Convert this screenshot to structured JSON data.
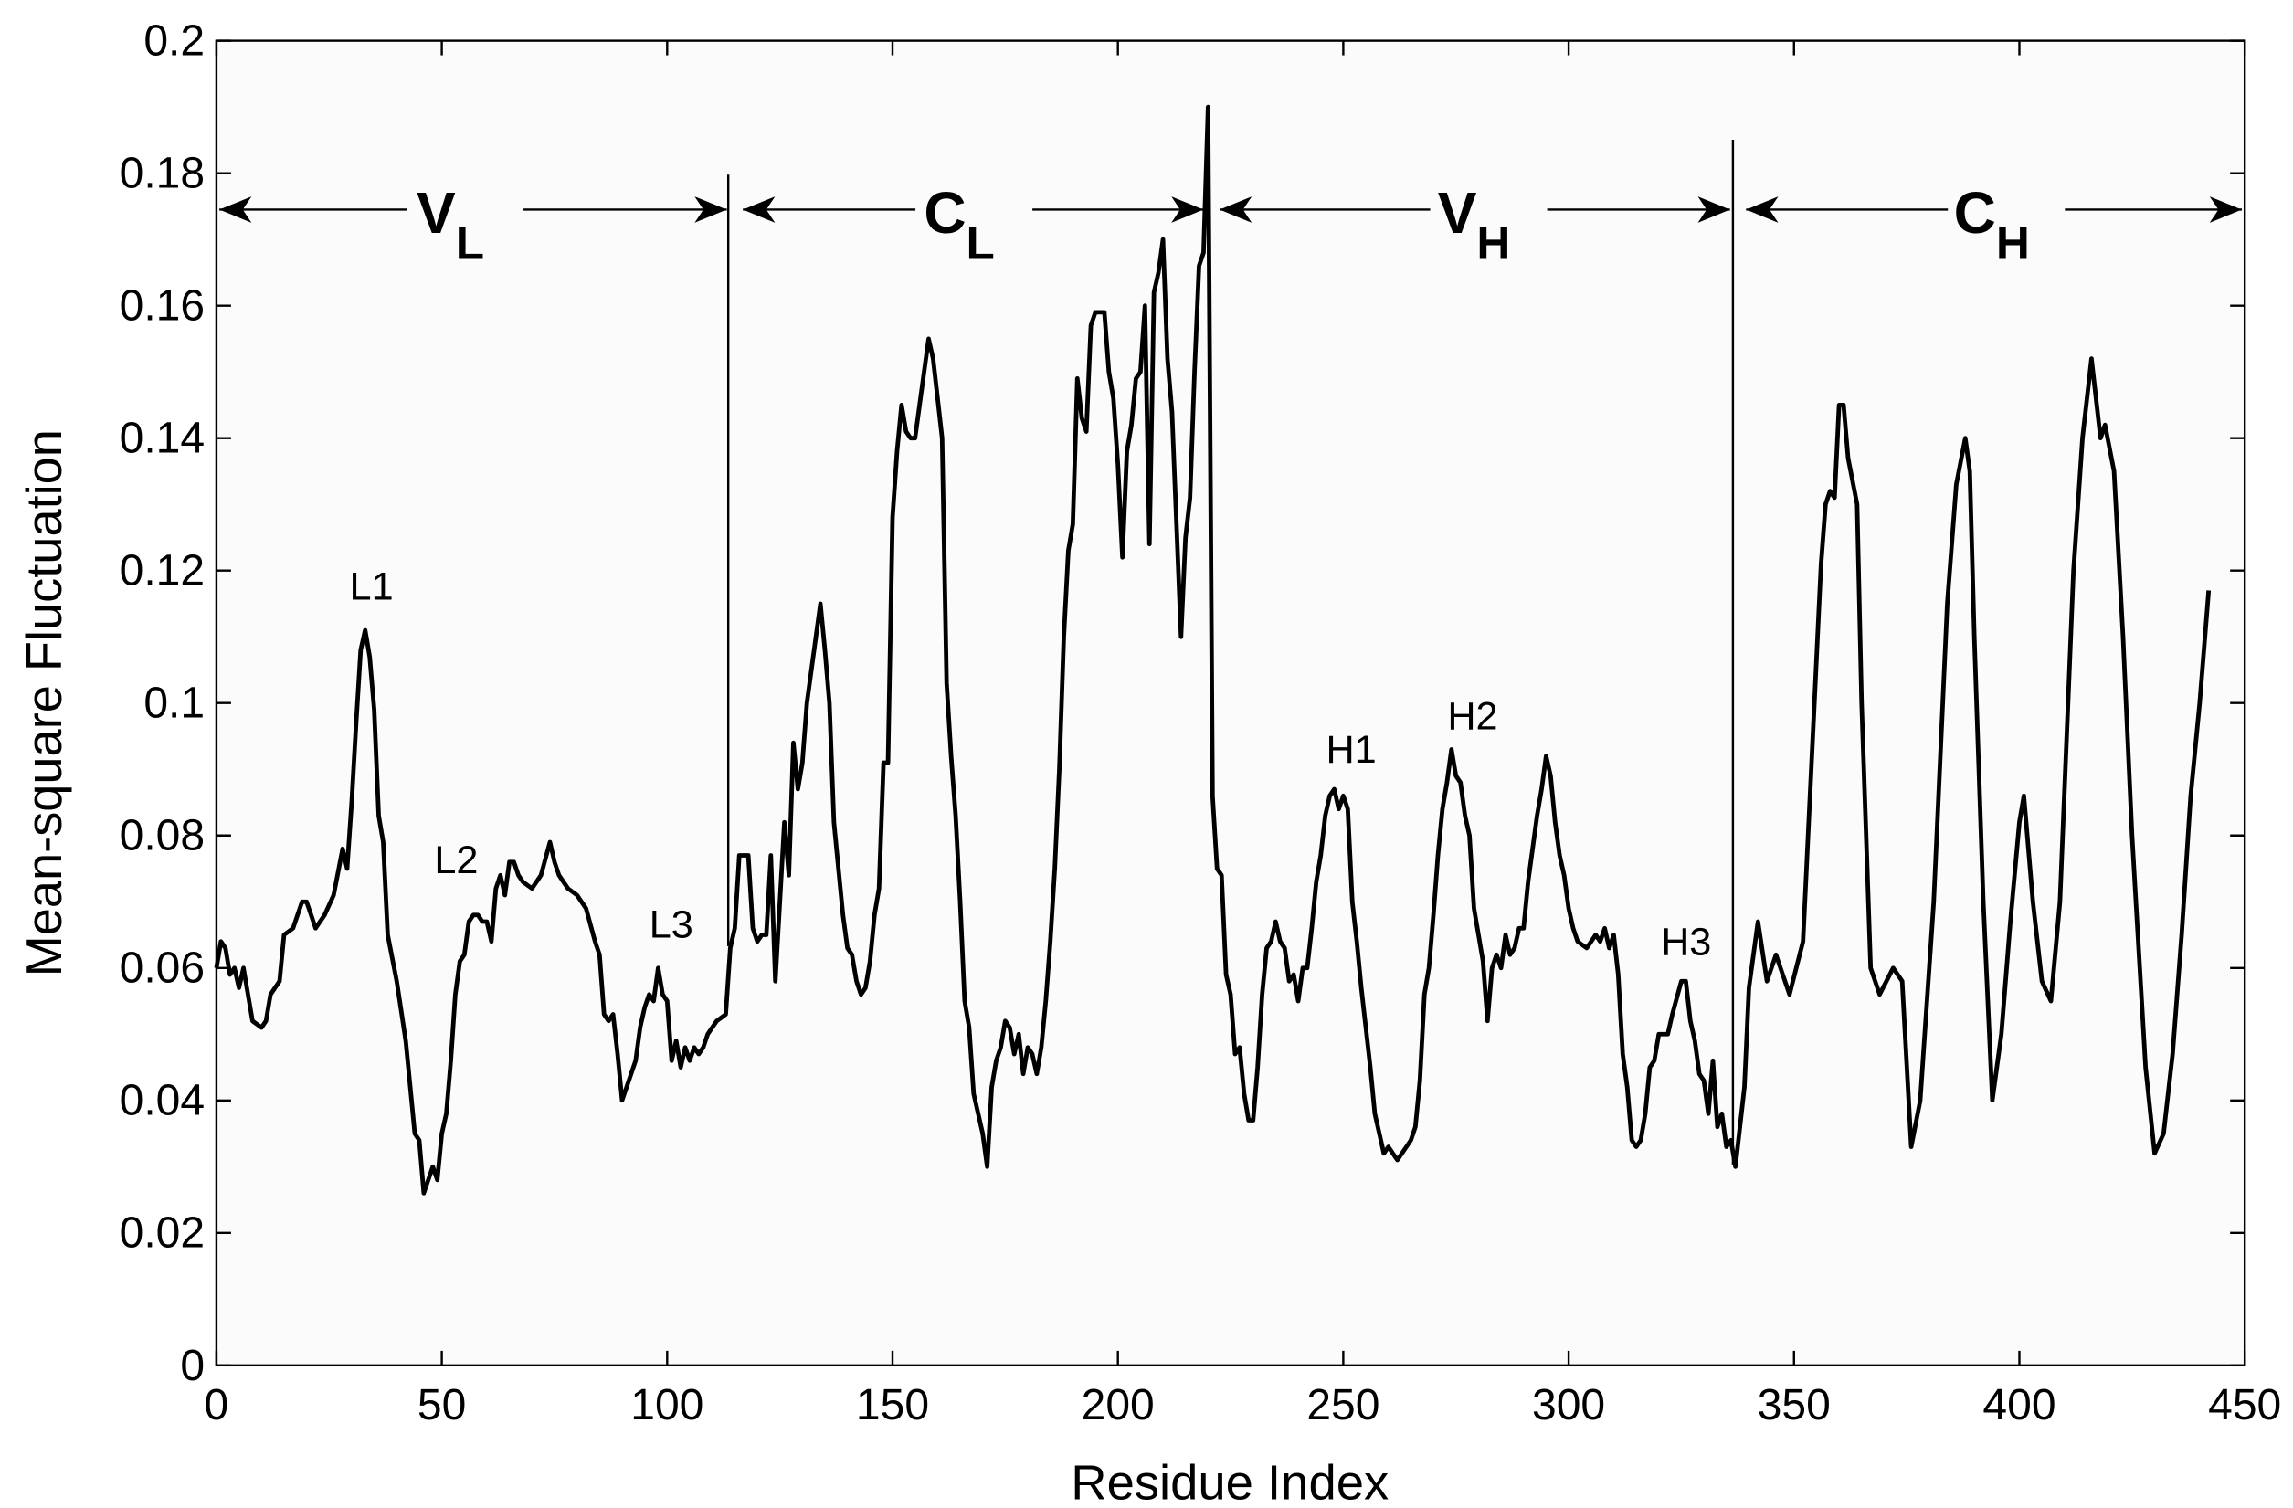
{
  "chart_data": {
    "type": "line",
    "x_label": "Residue Index",
    "y_label": "Mean-square Fluctuation",
    "xlim": [
      0,
      450
    ],
    "xticks": [
      0,
      50,
      100,
      150,
      200,
      250,
      300,
      350,
      400,
      450
    ],
    "ylim": [
      0,
      0.2
    ],
    "yticks": [
      0,
      0.02,
      0.04,
      0.06,
      0.08,
      0.1,
      0.12,
      0.14,
      0.16,
      0.18,
      0.2
    ],
    "color": "#000000",
    "annotations": [
      "L1",
      "L2",
      "L3",
      "H1",
      "H2",
      "H3"
    ],
    "regions": [
      {
        "text": "V",
        "sub": "L"
      },
      {
        "text": "C",
        "sub": "L"
      },
      {
        "text": "V",
        "sub": "H"
      },
      {
        "text": "C",
        "sub": "H"
      }
    ],
    "x": [
      0,
      1,
      2,
      3,
      4,
      5,
      6,
      7,
      8,
      10,
      11,
      12,
      14,
      15,
      17,
      19,
      20,
      22,
      24,
      26,
      28,
      29,
      30,
      31,
      32,
      33,
      34,
      35,
      36,
      37,
      38,
      40,
      42,
      43,
      44,
      45,
      46,
      47,
      48,
      49,
      50,
      51,
      52,
      53,
      54,
      55,
      56,
      57,
      58,
      59,
      60,
      61,
      62,
      63,
      64,
      65,
      66,
      67,
      68,
      70,
      72,
      74,
      75,
      76,
      78,
      80,
      82,
      84,
      85,
      86,
      87,
      88,
      89,
      90,
      91,
      93,
      94,
      95,
      96,
      97,
      98,
      99,
      100,
      101,
      102,
      103,
      104,
      105,
      106,
      107,
      108,
      109,
      111,
      113,
      114,
      115,
      116,
      118,
      119,
      120,
      121,
      122,
      123,
      124,
      125,
      126,
      127,
      128,
      129,
      130,
      131,
      132,
      134,
      135,
      136,
      137,
      139,
      140,
      141,
      142,
      143,
      144,
      145,
      146,
      147,
      148,
      149,
      150,
      151,
      152,
      153,
      154,
      155,
      156,
      157,
      158,
      159,
      160,
      161,
      162,
      163,
      164,
      165,
      166,
      167,
      168,
      169,
      170,
      171,
      172,
      173,
      174,
      175,
      176,
      177,
      178,
      179,
      180,
      181,
      182,
      183,
      184,
      185,
      186,
      187,
      188,
      189,
      190,
      191,
      192,
      193,
      194,
      195,
      197,
      198,
      199,
      200,
      201,
      202,
      203,
      204,
      205,
      206,
      207,
      208,
      209,
      210,
      211,
      212,
      213,
      214,
      215,
      216,
      217,
      218,
      219,
      220,
      221,
      222,
      223,
      224,
      225,
      226,
      227,
      228,
      229,
      230,
      231,
      232,
      233,
      234,
      235,
      236,
      237,
      238,
      239,
      240,
      241,
      242,
      243,
      244,
      245,
      246,
      247,
      248,
      249,
      250,
      251,
      252,
      253,
      254,
      255,
      256,
      257,
      258,
      259,
      260,
      261,
      262,
      263,
      264,
      265,
      266,
      267,
      268,
      269,
      270,
      271,
      272,
      273,
      274,
      275,
      276,
      277,
      278,
      279,
      280,
      281,
      282,
      283,
      284,
      285,
      286,
      287,
      288,
      289,
      290,
      291,
      292,
      293,
      294,
      295,
      296,
      297,
      298,
      299,
      300,
      301,
      302,
      304,
      306,
      307,
      308,
      309,
      310,
      311,
      312,
      313,
      314,
      315,
      316,
      317,
      318,
      319,
      320,
      322,
      323,
      325,
      326,
      327,
      328,
      329,
      330,
      331,
      332,
      333,
      334,
      335,
      336,
      337,
      338,
      339,
      340,
      342,
      344,
      346,
      349,
      352,
      356,
      357,
      358,
      359,
      360,
      361,
      362,
      364,
      365,
      367,
      369,
      372,
      374,
      376,
      378,
      381,
      384,
      386,
      388,
      389,
      390,
      392,
      394,
      396,
      398,
      400,
      401,
      403,
      405,
      407,
      409,
      412,
      414,
      416,
      418,
      419,
      421,
      423,
      425,
      428,
      430,
      432,
      434,
      436,
      438,
      440,
      442
    ],
    "values": [
      0.06,
      0.064,
      0.063,
      0.059,
      0.06,
      0.057,
      0.06,
      0.056,
      0.052,
      0.051,
      0.052,
      0.056,
      0.058,
      0.065,
      0.066,
      0.07,
      0.07,
      0.066,
      0.068,
      0.071,
      0.078,
      0.075,
      0.085,
      0.097,
      0.108,
      0.111,
      0.107,
      0.099,
      0.083,
      0.079,
      0.065,
      0.058,
      0.049,
      0.042,
      0.035,
      0.034,
      0.026,
      0.028,
      0.03,
      0.028,
      0.035,
      0.038,
      0.046,
      0.056,
      0.061,
      0.062,
      0.067,
      0.068,
      0.068,
      0.067,
      0.067,
      0.064,
      0.072,
      0.074,
      0.071,
      0.076,
      0.076,
      0.074,
      0.073,
      0.072,
      0.074,
      0.079,
      0.076,
      0.074,
      0.072,
      0.071,
      0.069,
      0.064,
      0.062,
      0.053,
      0.052,
      0.053,
      0.047,
      0.04,
      0.042,
      0.046,
      0.051,
      0.054,
      0.056,
      0.055,
      0.06,
      0.056,
      0.055,
      0.046,
      0.049,
      0.045,
      0.048,
      0.046,
      0.048,
      0.047,
      0.048,
      0.05,
      0.052,
      0.053,
      0.063,
      0.066,
      0.077,
      0.077,
      0.066,
      0.064,
      0.065,
      0.065,
      0.077,
      0.058,
      0.07,
      0.082,
      0.074,
      0.094,
      0.087,
      0.091,
      0.1,
      0.105,
      0.115,
      0.108,
      0.1,
      0.082,
      0.068,
      0.063,
      0.062,
      0.058,
      0.056,
      0.057,
      0.061,
      0.068,
      0.072,
      0.091,
      0.091,
      0.128,
      0.138,
      0.145,
      0.141,
      0.14,
      0.14,
      0.145,
      0.15,
      0.155,
      0.152,
      0.146,
      0.14,
      0.103,
      0.092,
      0.083,
      0.07,
      0.055,
      0.051,
      0.041,
      0.038,
      0.035,
      0.03,
      0.042,
      0.046,
      0.048,
      0.052,
      0.051,
      0.047,
      0.05,
      0.044,
      0.048,
      0.047,
      0.044,
      0.048,
      0.055,
      0.064,
      0.075,
      0.09,
      0.11,
      0.123,
      0.127,
      0.149,
      0.143,
      0.141,
      0.157,
      0.159,
      0.159,
      0.15,
      0.146,
      0.136,
      0.122,
      0.138,
      0.142,
      0.149,
      0.15,
      0.16,
      0.124,
      0.162,
      0.165,
      0.17,
      0.152,
      0.144,
      0.127,
      0.11,
      0.125,
      0.131,
      0.15,
      0.166,
      0.168,
      0.19,
      0.086,
      0.075,
      0.074,
      0.059,
      0.056,
      0.047,
      0.048,
      0.041,
      0.037,
      0.037,
      0.045,
      0.056,
      0.063,
      0.064,
      0.067,
      0.064,
      0.063,
      0.058,
      0.059,
      0.055,
      0.06,
      0.06,
      0.066,
      0.073,
      0.077,
      0.083,
      0.086,
      0.087,
      0.084,
      0.086,
      0.084,
      0.07,
      0.064,
      0.057,
      0.051,
      0.045,
      0.038,
      0.035,
      0.032,
      0.033,
      0.032,
      0.031,
      0.032,
      0.033,
      0.034,
      0.036,
      0.043,
      0.056,
      0.06,
      0.068,
      0.077,
      0.084,
      0.088,
      0.093,
      0.089,
      0.088,
      0.083,
      0.08,
      0.069,
      0.065,
      0.061,
      0.052,
      0.06,
      0.062,
      0.06,
      0.065,
      0.062,
      0.063,
      0.066,
      0.066,
      0.073,
      0.078,
      0.083,
      0.087,
      0.092,
      0.089,
      0.082,
      0.077,
      0.074,
      0.069,
      0.066,
      0.064,
      0.063,
      0.065,
      0.064,
      0.066,
      0.063,
      0.065,
      0.059,
      0.047,
      0.042,
      0.034,
      0.033,
      0.034,
      0.038,
      0.045,
      0.046,
      0.05,
      0.05,
      0.053,
      0.058,
      0.058,
      0.052,
      0.049,
      0.044,
      0.043,
      0.038,
      0.046,
      0.036,
      0.038,
      0.033,
      0.034,
      0.03,
      0.036,
      0.042,
      0.057,
      0.067,
      0.058,
      0.062,
      0.056,
      0.064,
      0.121,
      0.13,
      0.132,
      0.131,
      0.145,
      0.145,
      0.137,
      0.13,
      0.1,
      0.06,
      0.056,
      0.06,
      0.058,
      0.033,
      0.04,
      0.07,
      0.115,
      0.133,
      0.14,
      0.135,
      0.11,
      0.07,
      0.04,
      0.05,
      0.067,
      0.082,
      0.086,
      0.07,
      0.058,
      0.055,
      0.07,
      0.12,
      0.14,
      0.152,
      0.14,
      0.142,
      0.135,
      0.11,
      0.08,
      0.045,
      0.032,
      0.035,
      0.047,
      0.065,
      0.086,
      0.1,
      0.117
    ]
  }
}
